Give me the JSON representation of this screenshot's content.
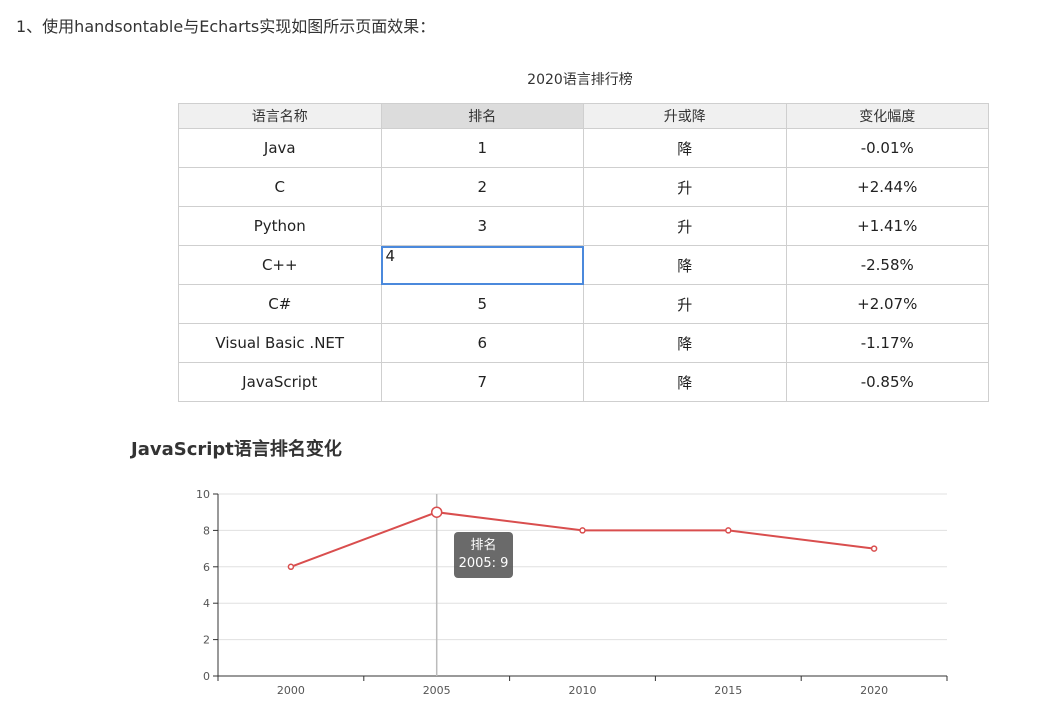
{
  "heading": "1、使用handsontable与Echarts实现如图所示页面效果：",
  "table": {
    "title": "2020语言排行榜",
    "headers": [
      "语言名称",
      "排名",
      "升或降",
      "变化幅度"
    ],
    "rows": [
      [
        "Java",
        "1",
        "降",
        "-0.01%"
      ],
      [
        "C",
        "2",
        "升",
        "+2.44%"
      ],
      [
        "Python",
        "3",
        "升",
        "+1.41%"
      ],
      [
        "C++",
        "4",
        "降",
        "-2.58%"
      ],
      [
        "C#",
        "5",
        "升",
        "+2.07%"
      ],
      [
        "Visual Basic .NET",
        "6",
        "降",
        "-1.17%"
      ],
      [
        "JavaScript",
        "7",
        "降",
        "-0.85%"
      ]
    ]
  },
  "chart_data": {
    "type": "line",
    "title": "JavaScript语言排名变化",
    "x": [
      "2000",
      "2005",
      "2010",
      "2015",
      "2020"
    ],
    "series": [
      {
        "name": "排名",
        "values": [
          6,
          9,
          8,
          8,
          7
        ]
      }
    ],
    "ylim": [
      0,
      10
    ],
    "yticks": [
      0,
      2,
      4,
      6,
      8,
      10
    ],
    "grid": true,
    "color": "#d94e4e"
  },
  "tooltip": {
    "series_name": "排名",
    "value_text": "2005: 9"
  }
}
